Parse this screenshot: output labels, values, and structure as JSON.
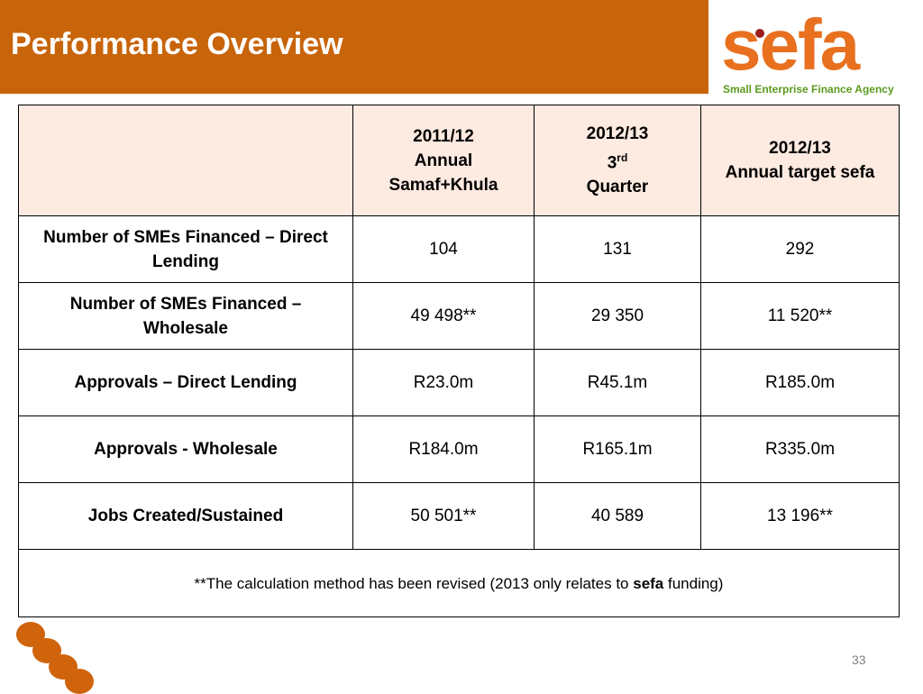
{
  "title": "Performance Overview",
  "logo": {
    "wordmark": "sefa",
    "tagline": "Small Enterprise Finance Agency"
  },
  "table": {
    "headers": [
      {
        "line1": "2011/12",
        "line2": "Annual",
        "line3": "Samaf+Khula"
      },
      {
        "line1": "2012/13",
        "line2": "3",
        "line2_sup": "rd",
        "line3": "Quarter"
      },
      {
        "line1": "2012/13",
        "line2": "Annual target sefa"
      }
    ],
    "rows": [
      {
        "label": "Number of SMEs Financed – Direct Lending",
        "values": [
          "104",
          "131",
          "292"
        ]
      },
      {
        "label": "Number of SMEs Financed – Wholesale",
        "values": [
          "49 498**",
          "29 350",
          "11 520**"
        ]
      },
      {
        "label": "Approvals – Direct Lending",
        "values": [
          "R23.0m",
          "R45.1m",
          "R185.0m"
        ]
      },
      {
        "label": "Approvals - Wholesale",
        "values": [
          "R184.0m",
          "R165.1m",
          "R335.0m"
        ]
      },
      {
        "label": "Jobs Created/Sustained",
        "values": [
          "50 501**",
          "40 589",
          "13 196**"
        ]
      }
    ],
    "note": {
      "before": "**The calculation method has been revised (2013 only relates to ",
      "bold": "sefa",
      "after": " funding)"
    }
  },
  "page_number": "33",
  "colors": {
    "title_bar": "#c8640a",
    "header_fill": "#fdeae0",
    "logo_orange": "#e8701e",
    "logo_green": "#5a9a1e"
  }
}
